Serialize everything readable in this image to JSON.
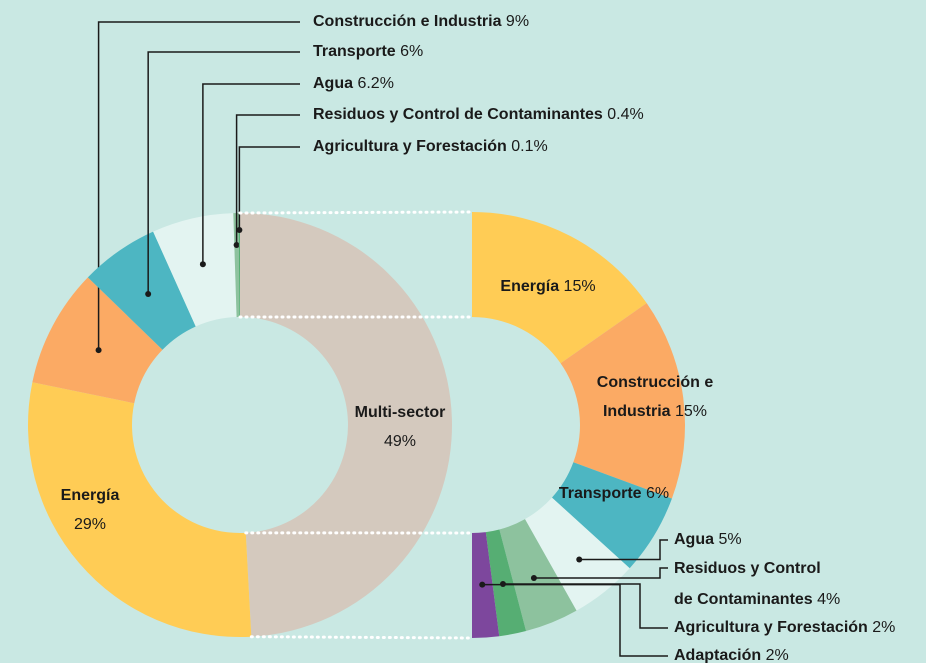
{
  "chart_data": [
    {
      "type": "donut",
      "categories": [
        "Multi-sector",
        "Energía",
        "Construcción e Industria",
        "Transporte",
        "Agua",
        "Residuos y Control de Contaminantes",
        "Agricultura y Forestación"
      ],
      "values": [
        49,
        29,
        9,
        6,
        6.2,
        0.4,
        0.1
      ],
      "value_labels": [
        "49%",
        "29%",
        "9%",
        "6%",
        "6.2%",
        "0.4%",
        "0.1%"
      ],
      "colors": [
        "#d4c9be",
        "#ffcc55",
        "#fbaa64",
        "#4db6c2",
        "#e3f4f1",
        "#8dc29e",
        "#56ae73"
      ]
    },
    {
      "type": "half-donut",
      "categories": [
        "Energía",
        "Construcción e Industria",
        "Transporte",
        "Agua",
        "Residuos y Control de Contaminantes",
        "Agricultura y Forestación",
        "Adaptación"
      ],
      "values": [
        15,
        15,
        6,
        5,
        4,
        2,
        2
      ],
      "value_labels": [
        "15%",
        "15%",
        "6%",
        "5%",
        "4%",
        "2%",
        "2%"
      ],
      "colors": [
        "#ffcc55",
        "#fbaa64",
        "#4db6c2",
        "#e3f4f1",
        "#8dc29e",
        "#56ae73",
        "#7d479d"
      ]
    }
  ]
}
